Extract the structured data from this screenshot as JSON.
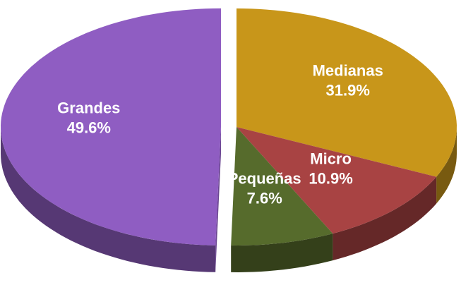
{
  "chart_data": {
    "type": "pie",
    "categories": [
      "Medianas",
      "Micro",
      "Pequeñas",
      "Grandes"
    ],
    "values": [
      31.9,
      10.9,
      7.6,
      49.6
    ],
    "value_labels": [
      "31.9%",
      "10.9%",
      "7.6%",
      "49.6%"
    ],
    "colors": [
      "#c8961a",
      "#a84343",
      "#566b2c",
      "#8f5dc2"
    ]
  }
}
